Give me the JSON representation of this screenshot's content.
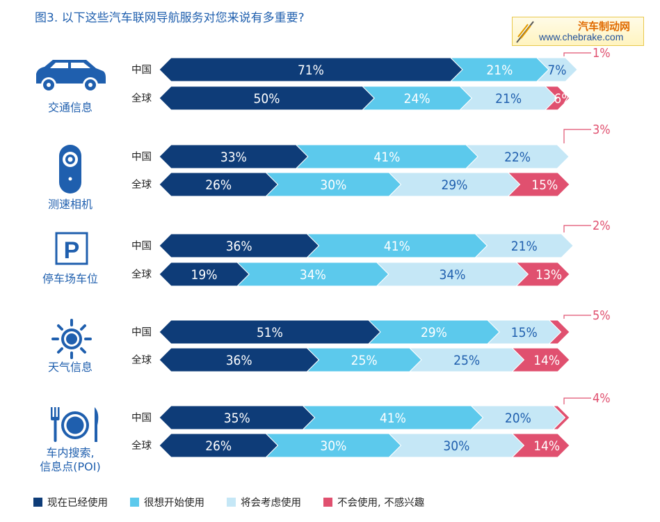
{
  "title": "图3. 以下这些汽车联网导航服务对您来说有多重要?",
  "logo": {
    "line1": "汽车制动网",
    "line2": "www.chebrake.com"
  },
  "colors": {
    "now": "#0e3c78",
    "want": "#5cc9ec",
    "consider": "#c5e7f6",
    "never": "#e0506f",
    "text_blue": "#1f5fae"
  },
  "legend": [
    {
      "label": "现在已经使用",
      "color": "#0e3c78"
    },
    {
      "label": "很想开始使用",
      "color": "#5cc9ec"
    },
    {
      "label": "将会考虑使用",
      "color": "#c5e7f6"
    },
    {
      "label": "不会使用, 不感兴趣",
      "color": "#e0506f"
    }
  ],
  "chart_data": {
    "type": "bar",
    "orientation": "horizontal",
    "stacked": true,
    "title": "图3. 以下这些汽车联网导航服务对您来说有多重要?",
    "series_names": [
      "现在已经使用",
      "很想开始使用",
      "将会考虑使用",
      "不会使用, 不感兴趣"
    ],
    "groups": [
      {
        "category": "交通信息",
        "icon": "car-icon",
        "rows": [
          {
            "region": "中国",
            "values": [
              71,
              21,
              7,
              1
            ],
            "labels": [
              "71%",
              "21%",
              "7%",
              "1%"
            ]
          },
          {
            "region": "全球",
            "values": [
              50,
              24,
              21,
              6
            ],
            "labels": [
              "50%",
              "24%",
              "21%",
              "6%"
            ]
          }
        ]
      },
      {
        "category": "测速相机",
        "icon": "speed-camera-icon",
        "rows": [
          {
            "region": "中国",
            "values": [
              33,
              41,
              22,
              3
            ],
            "labels": [
              "33%",
              "41%",
              "22%",
              "3%"
            ]
          },
          {
            "region": "全球",
            "values": [
              26,
              30,
              29,
              15
            ],
            "labels": [
              "26%",
              "30%",
              "29%",
              "15%"
            ]
          }
        ]
      },
      {
        "category": "停车场车位",
        "icon": "parking-icon",
        "rows": [
          {
            "region": "中国",
            "values": [
              36,
              41,
              21,
              2
            ],
            "labels": [
              "36%",
              "41%",
              "21%",
              "2%"
            ]
          },
          {
            "region": "全球",
            "values": [
              19,
              34,
              34,
              13
            ],
            "labels": [
              "19%",
              "34%",
              "34%",
              "13%"
            ]
          }
        ]
      },
      {
        "category": "天气信息",
        "icon": "sun-icon",
        "rows": [
          {
            "region": "中国",
            "values": [
              51,
              29,
              15,
              5
            ],
            "labels": [
              "51%",
              "29%",
              "15%",
              "5%"
            ]
          },
          {
            "region": "全球",
            "values": [
              36,
              25,
              25,
              14
            ],
            "labels": [
              "36%",
              "25%",
              "25%",
              "14%"
            ]
          }
        ]
      },
      {
        "category": "车内搜索,\n信息点(POI)",
        "icon": "dining-icon",
        "rows": [
          {
            "region": "中国",
            "values": [
              35,
              41,
              20,
              4
            ],
            "labels": [
              "35%",
              "41%",
              "20%",
              "4%"
            ]
          },
          {
            "region": "全球",
            "values": [
              26,
              30,
              30,
              14
            ],
            "labels": [
              "26%",
              "30%",
              "30%",
              "14%"
            ]
          }
        ]
      }
    ]
  }
}
